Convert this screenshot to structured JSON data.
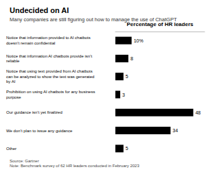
{
  "chart_data": {
    "type": "bar",
    "orientation": "horizontal",
    "title": "Undecided on AI",
    "subtitle": "Many companies are still figuring out how to manage the use of ChatGPT",
    "xlabel": "Percentage of HR leaders",
    "categories": [
      "Notice that information provided to AI chatbots\ndoesn’t remain confidential",
      "Notice that information AI chatbots provide isn’t\nreliable",
      "Notice that using text provided from AI chatbots\ncan be analyzed to show the text was generated\nby AI",
      "Prohibition on using AI chatbots for any business\npurpose",
      "Our guidance isn’t yet finalized",
      "We don’t plan to issue any guidance",
      "Other"
    ],
    "values": [
      10,
      8,
      5,
      3,
      48,
      34,
      5
    ],
    "value_labels": [
      "10%",
      "8",
      "5",
      "3",
      "48",
      "34",
      "5"
    ],
    "data_labels": true,
    "color": "#000000",
    "xlim": [
      0,
      55
    ],
    "tick_labels": false,
    "grid": false,
    "annotations": [
      "Source: Gartner\nNote: Benchmark survey of 62 HR leaders conducted in February 2023"
    ]
  }
}
